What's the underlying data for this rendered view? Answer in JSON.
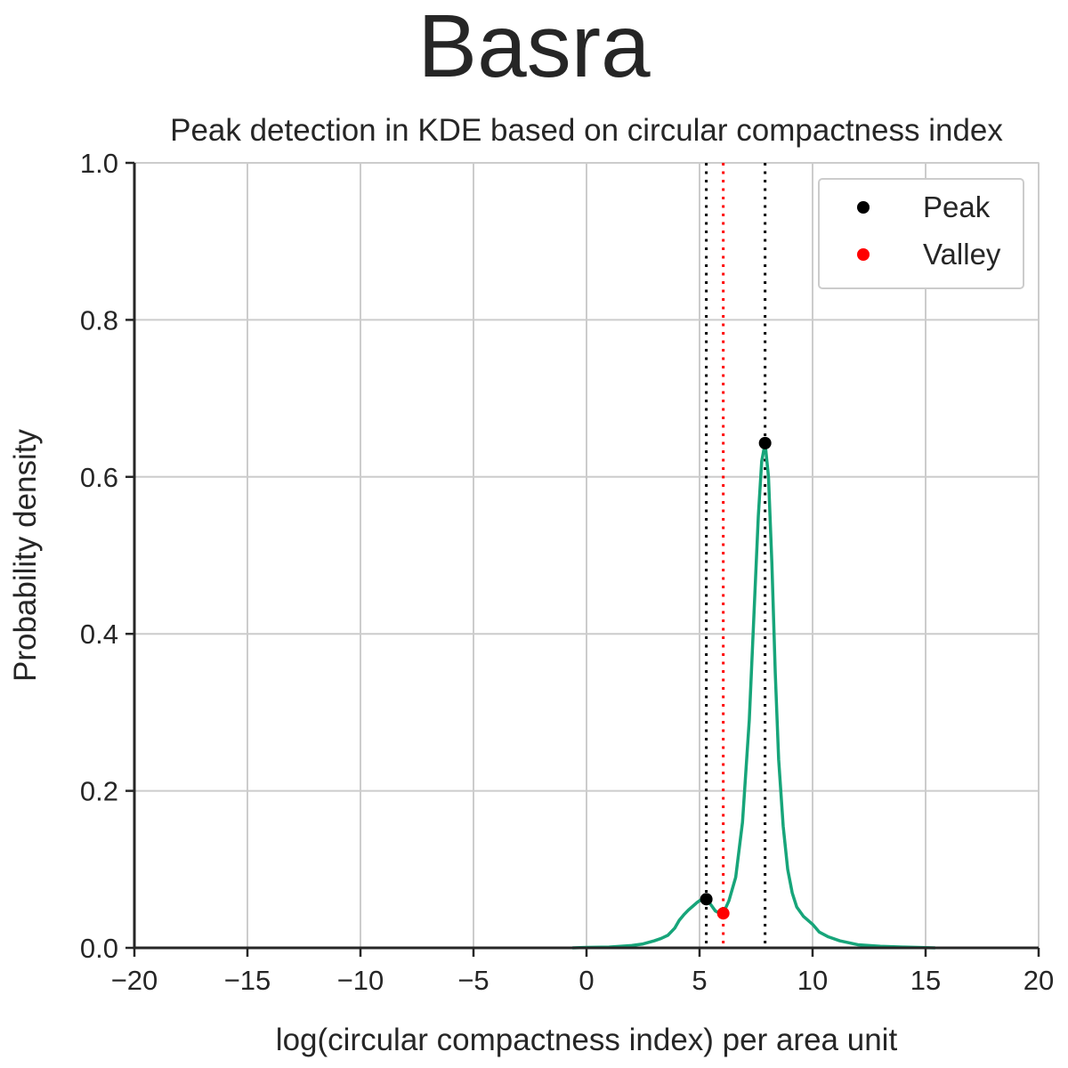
{
  "figure": {
    "suptitle": "Basra"
  },
  "chart_data": {
    "type": "line",
    "title": "Peak detection in KDE based on circular compactness index",
    "xlabel": "log(circular compactness index) per area unit",
    "ylabel": "Probability density",
    "xlim": [
      -20,
      20
    ],
    "ylim": [
      0,
      1.0
    ],
    "xticks": [
      -20,
      -15,
      -10,
      -5,
      0,
      5,
      10,
      15,
      20
    ],
    "xtick_labels": [
      "−20",
      "−15",
      "−10",
      "−5",
      "0",
      "5",
      "10",
      "15",
      "20"
    ],
    "yticks": [
      0,
      0.2,
      0.4,
      0.6,
      0.8,
      1.0
    ],
    "ytick_labels": [
      "0.0",
      "0.2",
      "0.4",
      "0.6",
      "0.8",
      "1.0"
    ],
    "grid": true,
    "legend_position": "top-right",
    "series": [
      {
        "kind": "line",
        "color": "#17a57a",
        "x": [
          -0.6,
          0,
          1,
          2,
          2.5,
          3,
          3.3,
          3.6,
          3.9,
          4.1,
          4.3,
          4.5,
          4.7,
          4.9,
          5.1,
          5.3,
          5.5,
          5.7,
          5.9,
          6.05,
          6.3,
          6.6,
          6.9,
          7.2,
          7.4,
          7.6,
          7.75,
          7.9,
          8.05,
          8.2,
          8.35,
          8.5,
          8.7,
          8.9,
          9.1,
          9.3,
          9.6,
          10.0,
          10.3,
          10.7,
          11.2,
          12.0,
          13.0,
          14.0,
          15.4
        ],
        "y": [
          0.0,
          0.0005,
          0.001,
          0.003,
          0.005,
          0.009,
          0.012,
          0.016,
          0.025,
          0.035,
          0.042,
          0.048,
          0.053,
          0.058,
          0.062,
          0.062,
          0.055,
          0.047,
          0.044,
          0.044,
          0.06,
          0.09,
          0.16,
          0.29,
          0.42,
          0.55,
          0.62,
          0.643,
          0.6,
          0.49,
          0.35,
          0.24,
          0.155,
          0.1,
          0.07,
          0.052,
          0.04,
          0.03,
          0.02,
          0.014,
          0.009,
          0.004,
          0.002,
          0.001,
          0.0
        ]
      },
      {
        "kind": "scatter",
        "name": "Peak",
        "color": "#000000",
        "x": [
          5.3,
          7.9
        ],
        "y": [
          0.062,
          0.643
        ]
      },
      {
        "kind": "scatter",
        "name": "Valley",
        "color": "#ff0000",
        "x": [
          6.05
        ],
        "y": [
          0.044
        ]
      }
    ],
    "vlines": [
      {
        "x": 5.3,
        "color": "#000000",
        "style": "dotted"
      },
      {
        "x": 7.9,
        "color": "#000000",
        "style": "dotted"
      },
      {
        "x": 6.05,
        "color": "#ff0000",
        "style": "dotted"
      }
    ]
  }
}
